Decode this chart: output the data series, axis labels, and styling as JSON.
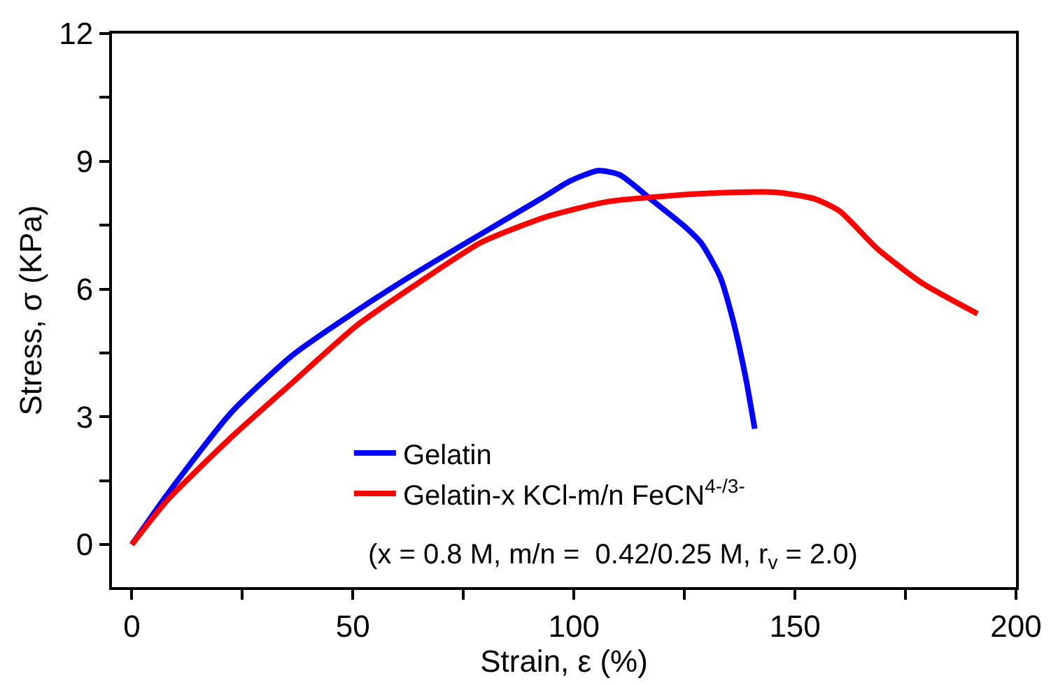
{
  "chart_data": {
    "type": "line",
    "xlabel": "Strain, ε (%)",
    "ylabel": "Stress, σ (KPa)",
    "xlim": [
      -4.5,
      200
    ],
    "ylim": [
      -1,
      12
    ],
    "xticks": [
      0,
      {
        "value": 25,
        "label": null
      },
      50,
      {
        "value": 75,
        "label": null
      },
      100,
      {
        "value": 125,
        "label": null
      },
      150,
      {
        "value": 175,
        "label": null
      },
      200
    ],
    "yticks": [
      0,
      {
        "value": 1.5,
        "label": null
      },
      3,
      {
        "value": 4.5,
        "label": null
      },
      6,
      {
        "value": 7.5,
        "label": null
      },
      9,
      {
        "value": 10.5,
        "label": null
      },
      12
    ],
    "legend": "bottom",
    "marker": "none",
    "line_style": "solid",
    "annotations": [
      "(x = 0.8 M, m/n =  0.42/0.25 M, r$_{v}$ = 2.0)"
    ],
    "series": [
      {
        "name": "Gelatin",
        "color": "#0000ff",
        "x": [
          0,
          8.1,
          22.3,
          36.5,
          50.7,
          64.9,
          79.1,
          93.3,
          99,
          105.4,
          110.4,
          117.5,
          124.6,
          128.8,
          133.1,
          136,
          138.8,
          140.9
        ],
        "values": [
          0,
          1.19,
          3.08,
          4.46,
          5.48,
          6.42,
          7.3,
          8.17,
          8.53,
          8.78,
          8.68,
          8.1,
          7.51,
          7.08,
          6.28,
          5.26,
          3.95,
          2.72
        ]
      },
      {
        "name": "Gelatin-x KCl-m/n FeCN$^{4-/3-}$",
        "color": "#ff0000",
        "x": [
          0,
          8.1,
          22.3,
          36.5,
          50.7,
          64.9,
          79.1,
          93.3,
          107.5,
          121.7,
          136,
          145.9,
          154.4,
          160.1,
          168.6,
          178.6,
          191.3
        ],
        "values": [
          0,
          1.05,
          2.5,
          3.82,
          5.13,
          6.15,
          7.1,
          7.68,
          8.05,
          8.19,
          8.27,
          8.27,
          8.12,
          7.83,
          6.95,
          6.15,
          5.42
        ]
      }
    ]
  }
}
